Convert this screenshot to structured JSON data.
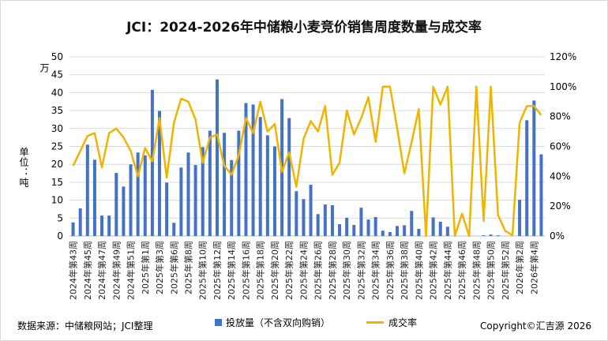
{
  "chart_data": {
    "type": "bar+line",
    "title": "JCI：2024-2026年中储粮小麦竞价销售周度数量与成交率",
    "ylabel_left_unit": "万",
    "ylabel_left": "单位：吨",
    "ylim_left": [
      0,
      50
    ],
    "yticks_left": [
      "0",
      "5",
      "10",
      "15",
      "20",
      "25",
      "30",
      "35",
      "40",
      "45",
      "50"
    ],
    "ylim_right": [
      0,
      120
    ],
    "yticks_right": [
      "0%",
      "20%",
      "40%",
      "60%",
      "80%",
      "100%",
      "120%"
    ],
    "grid": true,
    "legend_position": "bottom",
    "categories": [
      "2024年第43周",
      "2024年第44周",
      "2024年第45周",
      "2024年第46周",
      "2024年第47周",
      "2024年第48周",
      "2024年第49周",
      "2024年第50周",
      "2024年第51周",
      "2024年第52周",
      "2025年第1周",
      "2025年第2周",
      "2025年第3周",
      "2025年第4周",
      "2025年第6周",
      "2025年第7周",
      "2025年第8周",
      "2025年第9周",
      "2025年第10周",
      "2025年第11周",
      "2025年第12周",
      "2025年第13周",
      "2025年第14周",
      "2025年第15周",
      "2025年第16周",
      "2025年第17周",
      "2025年第18周",
      "2025年第19周",
      "2025年第20周",
      "2025年第21周",
      "2025年第22周",
      "2025年第23周",
      "2025年第24周",
      "2025年第25周",
      "2025年第26周",
      "2025年第27周",
      "2025年第28周",
      "2025年第29周",
      "2025年第30周",
      "2025年第31周",
      "2025年第32周",
      "2025年第33周",
      "2025年第34周",
      "2025年第35周",
      "2025年第36周",
      "2025年第37周",
      "2025年第38周",
      "2025年第39周",
      "2025年第40周",
      "2025年第41周",
      "2025年第42周",
      "2025年第43周",
      "2025年第44周",
      "2025年第45周",
      "2025年第46周",
      "2025年第47周",
      "2025年第48周",
      "2025年第49周",
      "2025年第50周",
      "2025年第51周",
      "2025年第52周",
      "2026年第1周",
      "2026年第2周",
      "2026年第3周",
      "2026年第4周",
      "2026年第5周"
    ],
    "series": [
      {
        "name": "投放量（不含双向购销）",
        "axis": "left",
        "type": "bar",
        "color": "#4472c4",
        "values": [
          3.8,
          7.7,
          25.5,
          21.3,
          5.7,
          5.7,
          17.6,
          13.8,
          20.0,
          23.3,
          22.5,
          40.8,
          34.9,
          14.9,
          3.7,
          19.1,
          23.3,
          19.8,
          24.8,
          29.4,
          43.7,
          28.8,
          21.2,
          29.4,
          37.1,
          36.7,
          33.2,
          28.1,
          25.0,
          38.2,
          32.9,
          12.5,
          10.3,
          14.3,
          6.1,
          8.8,
          8.6,
          3.3,
          5.1,
          3.1,
          7.9,
          4.6,
          5.3,
          1.5,
          1.1,
          2.8,
          3.0,
          7.0,
          2.0,
          0,
          5.2,
          4.0,
          2.6,
          0,
          0,
          0,
          0,
          0.2,
          0.4,
          0.2,
          0,
          0,
          10.1,
          32.3,
          37.8,
          22.8
        ]
      },
      {
        "name": "成交率",
        "axis": "right",
        "type": "line",
        "color": "#f0b400",
        "values": [
          47,
          57,
          67,
          69,
          46,
          69,
          72,
          66,
          57,
          40,
          59,
          50,
          79,
          39,
          76,
          92,
          90,
          78,
          49,
          66,
          68,
          47,
          41,
          54,
          79,
          69,
          90,
          70,
          75,
          43,
          56,
          33,
          65,
          77,
          70,
          87,
          41,
          49,
          84,
          68,
          79,
          93,
          63,
          100,
          100,
          72,
          42,
          63,
          85,
          0,
          100,
          88,
          100,
          0,
          15,
          0,
          100,
          10,
          100,
          14,
          3.5,
          0.5,
          76,
          87,
          87,
          81
        ]
      }
    ]
  },
  "footer": {
    "source": "数据来源：中储粮网站；JCI整理",
    "copyright": "Copyright©汇吉源 2026"
  }
}
